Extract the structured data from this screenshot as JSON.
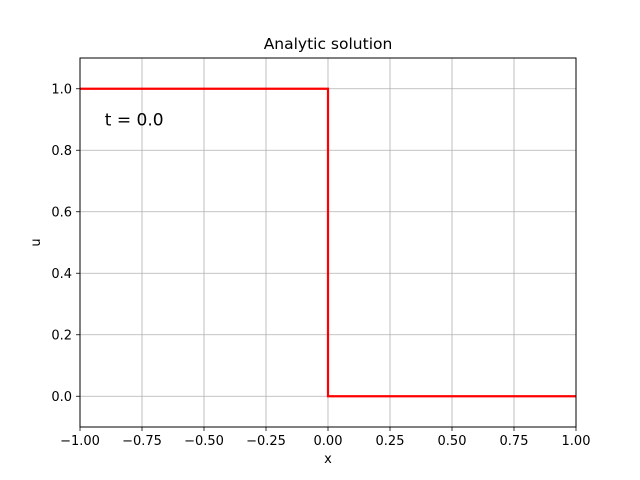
{
  "chart_data": {
    "type": "line",
    "title": "Analytic solution",
    "xlabel": "x",
    "ylabel": "u",
    "xlim": [
      -1.0,
      1.0
    ],
    "ylim": [
      -0.1,
      1.1
    ],
    "grid": true,
    "x_ticks": [
      -1.0,
      -0.75,
      -0.5,
      -0.25,
      0.0,
      0.25,
      0.5,
      0.75,
      1.0
    ],
    "x_tick_labels": [
      "−1.00",
      "−0.75",
      "−0.50",
      "−0.25",
      "0.00",
      "0.25",
      "0.50",
      "0.75",
      "1.00"
    ],
    "y_ticks": [
      0.0,
      0.2,
      0.4,
      0.6,
      0.8,
      1.0
    ],
    "y_tick_labels": [
      "0.0",
      "0.2",
      "0.4",
      "0.6",
      "0.8",
      "1.0"
    ],
    "annotation": {
      "text": "t = 0.0",
      "x": -0.9,
      "y": 0.9
    },
    "series": [
      {
        "color": "#ff0000",
        "x": [
          -1.0,
          0.0,
          0.0,
          1.0
        ],
        "y": [
          1.0,
          1.0,
          0.0,
          0.0
        ]
      }
    ]
  }
}
